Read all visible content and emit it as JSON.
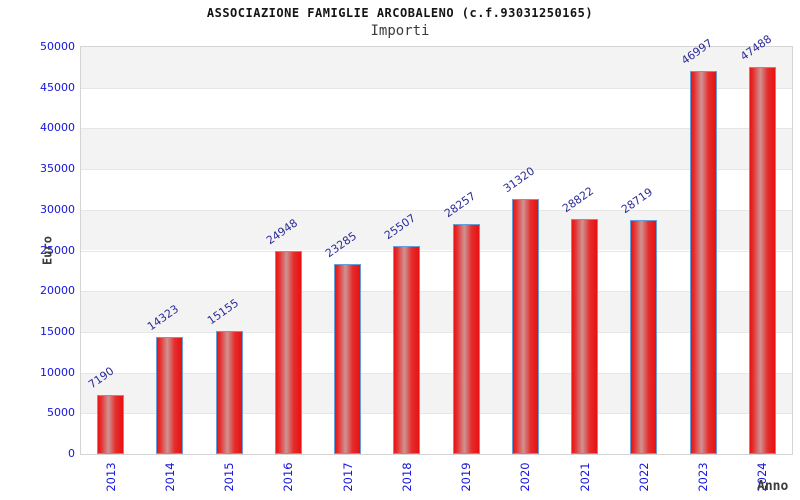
{
  "chart_data": {
    "type": "bar",
    "title": "ASSOCIAZIONE FAMIGLIE ARCOBALENO (c.f.93031250165)",
    "subtitle": "Importi",
    "xlabel": "Anno",
    "ylabel": "Euro",
    "categories": [
      "2013",
      "2014",
      "2015",
      "2016",
      "2017",
      "2018",
      "2019",
      "2020",
      "2021",
      "2022",
      "2023",
      "2024"
    ],
    "values": [
      7190,
      14323,
      15155,
      24948,
      23285,
      25507,
      28257,
      31320,
      28822,
      28719,
      46997,
      47488
    ],
    "ylim": [
      0,
      50000
    ],
    "ytick_step": 5000,
    "ytick_labels": [
      "0",
      "5000",
      "10000",
      "15000",
      "20000",
      "25000",
      "30000",
      "35000",
      "40000",
      "45000",
      "50000"
    ],
    "grid": "horizontal-alternating-bands",
    "legend": "none",
    "colors": {
      "bar_fill_edge": "#e81414",
      "bar_fill_highlight": "#cf9393",
      "bar_border": "#63a0da",
      "value_label": "#2c2c96",
      "tick_label": "#1414dd",
      "axis_title": "#3c3c3c",
      "band_gray": "#f3f3f3",
      "band_white": "#ffffff",
      "gridline": "#e6e6e6",
      "plot_border": "#d4d4d4",
      "title": "#141414"
    }
  }
}
